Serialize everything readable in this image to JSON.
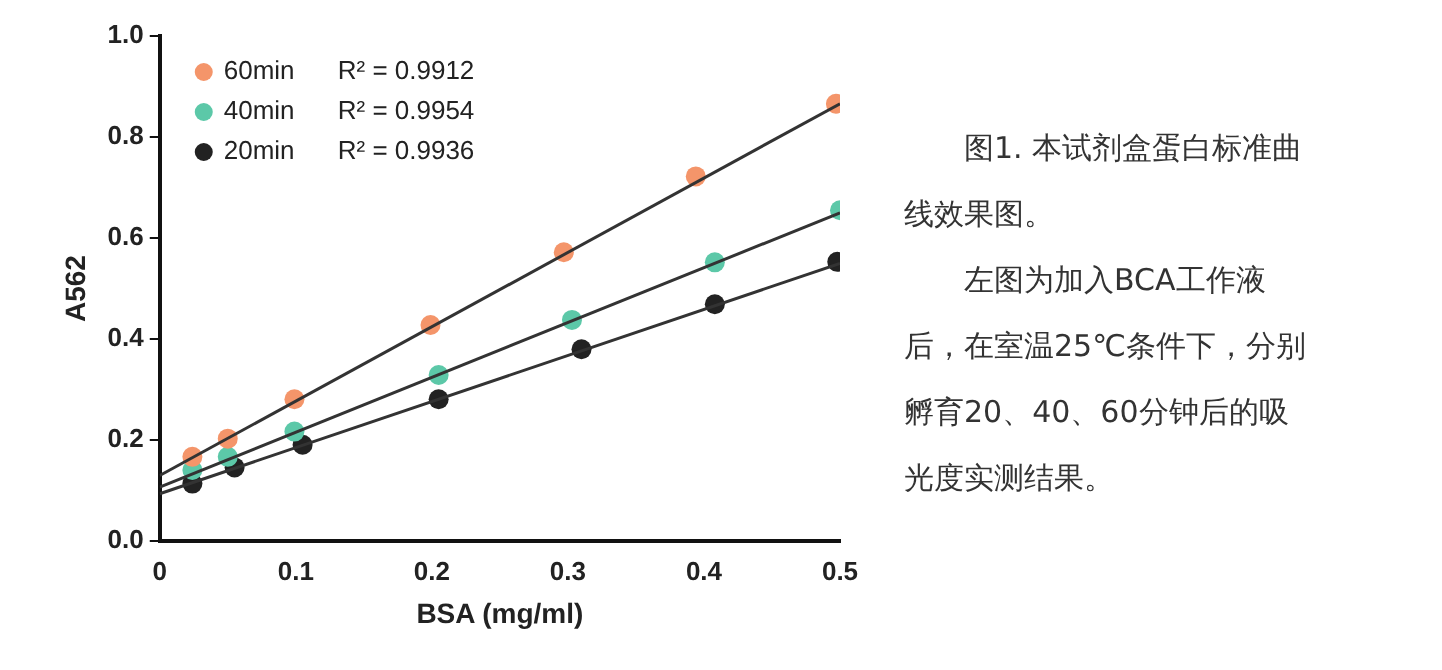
{
  "chart_data": {
    "type": "scatter",
    "xlabel": "BSA (mg/ml)",
    "ylabel": "A562",
    "xlim": [
      0,
      0.5
    ],
    "xticks": [
      0,
      0.1,
      0.2,
      0.3,
      0.4,
      0.5
    ],
    "ylim": [
      0,
      1.0
    ],
    "yticks": [
      {
        "value": 0,
        "label": "0.0"
      },
      0.2,
      0.4,
      0.6,
      0.8,
      {
        "value": 1,
        "label": "1.0"
      }
    ],
    "grid": false,
    "legend": "top left",
    "marker": "circle",
    "series": [
      {
        "name": "60min",
        "color": "#f4956a",
        "x": [
          0.024,
          0.05,
          0.099,
          0.199,
          0.297,
          0.394,
          0.497
        ],
        "values": [
          0.167,
          0.203,
          0.281,
          0.428,
          0.572,
          0.722,
          0.866
        ]
      },
      {
        "name": "40min",
        "color": "#5cc8a8",
        "x": [
          0.024,
          0.05,
          0.099,
          0.205,
          0.303,
          0.408,
          0.5
        ],
        "values": [
          0.141,
          0.167,
          0.217,
          0.329,
          0.438,
          0.552,
          0.655
        ]
      },
      {
        "name": "20min",
        "color": "#222222",
        "x": [
          0.024,
          0.055,
          0.105,
          0.205,
          0.31,
          0.408,
          0.498
        ],
        "values": [
          0.114,
          0.146,
          0.191,
          0.281,
          0.38,
          0.469,
          0.553
        ]
      },
      {
        "type": "line",
        "color": "#333333",
        "marker": "none",
        "x": [
          0,
          0.5
        ],
        "values": [
          0.13,
          0.866
        ]
      },
      {
        "type": "line",
        "color": "#333333",
        "marker": "none",
        "x": [
          0,
          0.5
        ],
        "values": [
          0.107,
          0.65
        ]
      },
      {
        "type": "line",
        "color": "#333333",
        "marker": "none",
        "x": [
          0,
          0.5
        ],
        "values": [
          0.094,
          0.55
        ]
      }
    ],
    "annotations": [
      "R² = 0.9912",
      "R² = 0.9954",
      "R² = 0.9936",
      "图1. 本试剂盒蛋白标准曲线效果图。",
      "左图为加入BCA工作液后，在室温25℃条件下，分别孵育20、40、60分钟后的吸光度实测结果。"
    ]
  }
}
